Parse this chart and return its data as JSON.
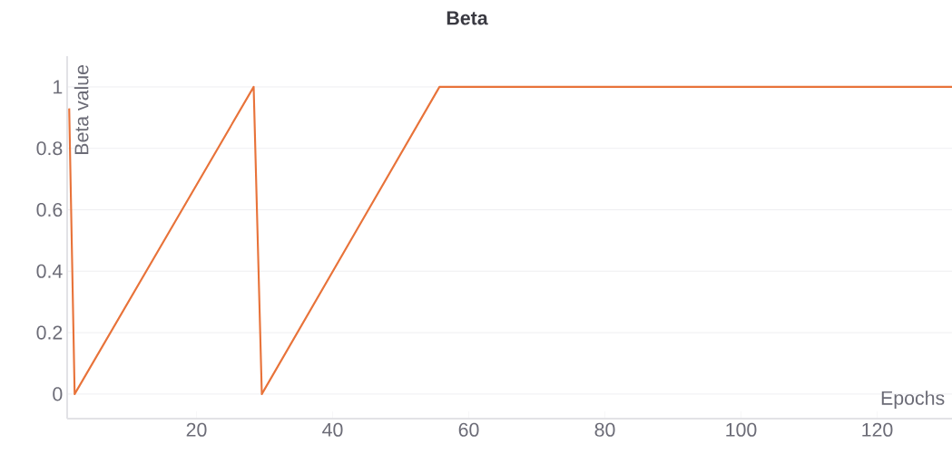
{
  "chart_data": {
    "type": "line",
    "title": "Beta",
    "xlabel": "Epochs",
    "ylabel": "Beta value",
    "series": [
      {
        "color": "#e8733a",
        "x": [
          1.3,
          2.1,
          28.4,
          29.6,
          55.7,
          131
        ],
        "values": [
          0.93,
          0,
          1,
          0,
          1,
          1
        ]
      }
    ],
    "xlim": [
      1,
      131
    ],
    "ylim": [
      -0.08,
      1.1
    ],
    "xticks": [
      20,
      40,
      60,
      80,
      100,
      120
    ],
    "yticks": [
      0,
      0.2,
      0.4,
      0.6,
      0.8,
      1
    ],
    "grid": "y",
    "marker": "none",
    "line_style": "solid"
  }
}
